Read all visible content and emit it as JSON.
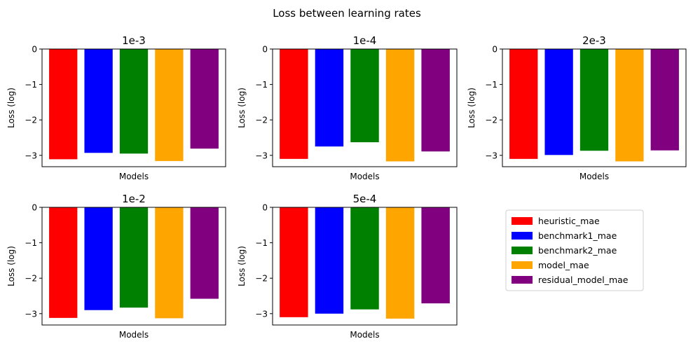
{
  "figure": {
    "title": "Loss between learning rates"
  },
  "colors": {
    "heuristic_mae": "#ff0000",
    "benchmark1_mae": "#0000ff",
    "benchmark2_mae": "#008000",
    "model_mae": "#ffa500",
    "residual_model_mae": "#800080"
  },
  "chart_data": [
    {
      "type": "bar",
      "title": "1e-3",
      "xlabel": "Models",
      "ylabel": "Loss (log)",
      "ylim": [
        -3.32,
        0
      ],
      "yticks": [
        0,
        -1,
        -2,
        -3
      ],
      "ytick_labels": [
        "0",
        "−1",
        "−2",
        "−3"
      ],
      "categories": [
        "heuristic_mae",
        "benchmark1_mae",
        "benchmark2_mae",
        "model_mae",
        "residual_model_mae"
      ],
      "values": [
        -3.11,
        -2.93,
        -2.95,
        -3.16,
        -2.81
      ]
    },
    {
      "type": "bar",
      "title": "1e-4",
      "xlabel": "Models",
      "ylabel": "Loss (log)",
      "ylim": [
        -3.32,
        0
      ],
      "yticks": [
        0,
        -1,
        -2,
        -3
      ],
      "ytick_labels": [
        "0",
        "−1",
        "−2",
        "−3"
      ],
      "categories": [
        "heuristic_mae",
        "benchmark1_mae",
        "benchmark2_mae",
        "model_mae",
        "residual_model_mae"
      ],
      "values": [
        -3.1,
        -2.75,
        -2.63,
        -3.17,
        -2.89
      ]
    },
    {
      "type": "bar",
      "title": "2e-3",
      "xlabel": "Models",
      "ylabel": "Loss (log)",
      "ylim": [
        -3.32,
        0
      ],
      "yticks": [
        0,
        -1,
        -2,
        -3
      ],
      "ytick_labels": [
        "0",
        "−1",
        "−2",
        "−3"
      ],
      "categories": [
        "heuristic_mae",
        "benchmark1_mae",
        "benchmark2_mae",
        "model_mae",
        "residual_model_mae"
      ],
      "values": [
        -3.1,
        -2.99,
        -2.87,
        -3.17,
        -2.86
      ]
    },
    {
      "type": "bar",
      "title": "1e-2",
      "xlabel": "Models",
      "ylabel": "Loss (log)",
      "ylim": [
        -3.32,
        0
      ],
      "yticks": [
        0,
        -1,
        -2,
        -3
      ],
      "ytick_labels": [
        "0",
        "−1",
        "−2",
        "−3"
      ],
      "categories": [
        "heuristic_mae",
        "benchmark1_mae",
        "benchmark2_mae",
        "model_mae",
        "residual_model_mae"
      ],
      "values": [
        -3.12,
        -2.9,
        -2.83,
        -3.13,
        -2.58
      ]
    },
    {
      "type": "bar",
      "title": "5e-4",
      "xlabel": "Models",
      "ylabel": "Loss (log)",
      "ylim": [
        -3.32,
        0
      ],
      "yticks": [
        0,
        -1,
        -2,
        -3
      ],
      "ytick_labels": [
        "0",
        "−1",
        "−2",
        "−3"
      ],
      "categories": [
        "heuristic_mae",
        "benchmark1_mae",
        "benchmark2_mae",
        "model_mae",
        "residual_model_mae"
      ],
      "values": [
        -3.1,
        -3.0,
        -2.88,
        -3.14,
        -2.71
      ]
    }
  ],
  "legend": {
    "placement": "lower-right",
    "entries": [
      "heuristic_mae",
      "benchmark1_mae",
      "benchmark2_mae",
      "model_mae",
      "residual_model_mae"
    ]
  }
}
